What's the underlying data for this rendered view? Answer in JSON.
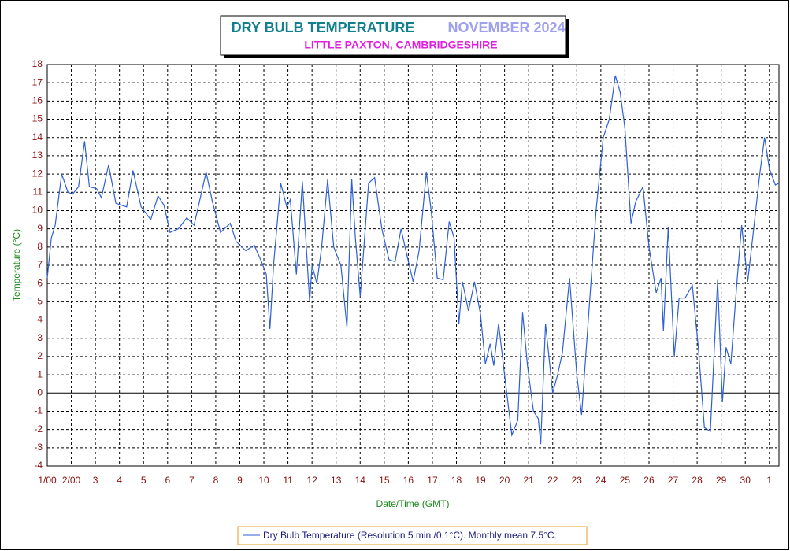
{
  "chart_data": {
    "type": "line",
    "title": "DRY BULB TEMPERATURE",
    "title_period": "NOVEMBER 2024",
    "subtitle": "LITTLE PAXTON, CAMBRIDGESHIRE",
    "x_label": "Date/Time (GMT)",
    "y_label": "Temperature (°C)",
    "x": [
      0,
      0.17,
      0.33,
      0.6,
      0.86,
      1.05,
      1.3,
      1.55,
      1.75,
      2.05,
      2.25,
      2.55,
      2.85,
      3.3,
      3.56,
      3.9,
      4.3,
      4.6,
      4.85,
      5.1,
      5.45,
      5.8,
      6.1,
      6.6,
      6.86,
      7.2,
      7.6,
      7.85,
      8.25,
      8.6,
      8.9,
      9.1,
      9.25,
      9.4,
      9.7,
      9.95,
      10.1,
      10.35,
      10.6,
      10.9,
      11.0,
      11.2,
      11.4,
      11.65,
      11.9,
      12.2,
      12.45,
      12.65,
      12.8,
      13.0,
      13.1,
      13.35,
      13.6,
      13.9,
      14.2,
      14.45,
      14.7,
      14.9,
      15.2,
      15.45,
      15.75,
      15.95,
      16.2,
      16.45,
      16.7,
      16.9,
      17.1,
      17.25,
      17.5,
      17.75,
      18.0,
      18.2,
      18.4,
      18.55,
      18.75,
      19.0,
      19.3,
      19.55,
      19.75,
      19.95,
      20.2,
      20.4,
      20.5,
      20.7,
      21.0,
      21.2,
      21.4,
      21.7,
      22.0,
      22.2,
      22.45,
      22.8,
      23.1,
      23.35,
      23.6,
      23.8,
      24.0,
      24.25,
      24.45,
      24.75,
      25.0,
      25.3,
      25.5,
      25.6,
      25.8,
      26.05,
      26.25,
      26.5,
      26.8,
      27.05,
      27.3,
      27.55,
      27.85,
      28.05,
      28.2,
      28.4,
      28.65,
      28.85,
      29.1,
      29.35,
      29.6,
      29.8,
      30.0,
      30.25,
      30.4
    ],
    "series": [
      {
        "name": "Dry Bulb Temperature (Resolution 5 min./0.1°C). Monthly mean 7.5°C.",
        "color": "#2e5fd6",
        "values": [
          6.3,
          8.5,
          9.2,
          12.0,
          11.0,
          10.9,
          11.3,
          13.8,
          11.3,
          11.2,
          10.7,
          12.5,
          10.4,
          10.2,
          12.2,
          10.2,
          9.5,
          10.8,
          10.3,
          8.8,
          9.0,
          9.6,
          9.2,
          12.1,
          10.5,
          8.8,
          9.3,
          8.3,
          7.8,
          8.1,
          7.2,
          6.5,
          3.5,
          7.0,
          11.5,
          10.2,
          10.6,
          6.5,
          11.6,
          5.0,
          7.0,
          6.0,
          8.0,
          11.7,
          8.0,
          7.0,
          3.6,
          11.7,
          8.5,
          5.3,
          7.0,
          11.5,
          11.8,
          9.0,
          7.3,
          7.2,
          9.0,
          7.8,
          6.1,
          7.8,
          12.1,
          10.0,
          6.3,
          6.2,
          9.4,
          8.5,
          3.8,
          6.1,
          4.5,
          6.1,
          4.3,
          1.6,
          2.7,
          1.5,
          3.8,
          1.0,
          -2.3,
          -1.5,
          4.4,
          1.5,
          -1.0,
          -1.4,
          -2.8,
          3.8,
          0.0,
          1.0,
          2.2,
          6.3,
          1.0,
          -1.2,
          3.5,
          10.0,
          14.0,
          15.0,
          17.4,
          16.5,
          14.5,
          9.3,
          10.5,
          11.3,
          8.0,
          5.5,
          6.3,
          3.4,
          9.1,
          2.0,
          5.2,
          5.2,
          5.9,
          2.5,
          -1.9,
          -2.1,
          6.2,
          -0.5,
          2.5,
          1.6,
          6.0,
          9.2,
          6.1,
          9.0,
          12.0,
          14.0,
          12.3,
          11.4,
          11.5
        ]
      }
    ],
    "xlim": [
      0,
      30.4
    ],
    "xticks": [
      {
        "value": 0,
        "label": "1/00"
      },
      {
        "value": 1,
        "label": "2/00"
      },
      {
        "value": 2,
        "label": "3"
      },
      {
        "value": 3,
        "label": "4"
      },
      {
        "value": 4,
        "label": "5"
      },
      {
        "value": 5,
        "label": "6"
      },
      {
        "value": 6,
        "label": "7"
      },
      {
        "value": 7,
        "label": "8"
      },
      {
        "value": 8,
        "label": "9"
      },
      {
        "value": 9,
        "label": "10"
      },
      {
        "value": 10,
        "label": "11"
      },
      {
        "value": 11,
        "label": "12"
      },
      {
        "value": 12,
        "label": "13"
      },
      {
        "value": 13,
        "label": "14"
      },
      {
        "value": 14,
        "label": "15"
      },
      {
        "value": 15,
        "label": "16"
      },
      {
        "value": 16,
        "label": "17"
      },
      {
        "value": 17,
        "label": "18"
      },
      {
        "value": 18,
        "label": "19"
      },
      {
        "value": 19,
        "label": "20"
      },
      {
        "value": 20,
        "label": "21"
      },
      {
        "value": 21,
        "label": "22"
      },
      {
        "value": 22,
        "label": "23"
      },
      {
        "value": 23,
        "label": "24"
      },
      {
        "value": 24,
        "label": "25"
      },
      {
        "value": 25,
        "label": "26"
      },
      {
        "value": 26,
        "label": "27"
      },
      {
        "value": 27,
        "label": "28"
      },
      {
        "value": 28,
        "label": "29"
      },
      {
        "value": 29,
        "label": "30"
      },
      {
        "value": 30,
        "label": "1"
      }
    ],
    "ylim": [
      -4,
      18
    ],
    "yticks": [
      -4,
      -3,
      -2,
      -1,
      0,
      1,
      2,
      3,
      4,
      5,
      6,
      7,
      8,
      9,
      10,
      11,
      12,
      13,
      14,
      15,
      16,
      17,
      18
    ],
    "grid": true,
    "legend": "bottom"
  }
}
